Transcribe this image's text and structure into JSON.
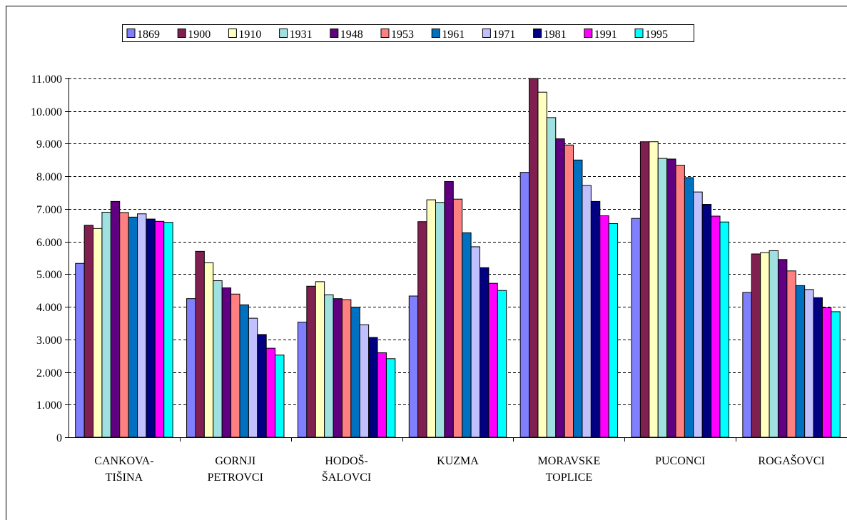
{
  "chart_data": {
    "type": "bar",
    "title": "",
    "xlabel": "",
    "ylabel": "",
    "ylim": [
      0,
      11000
    ],
    "yticks": [
      0,
      1000,
      2000,
      3000,
      4000,
      5000,
      6000,
      7000,
      8000,
      9000,
      10000,
      11000
    ],
    "ytick_labels": [
      "0",
      "1.000",
      "2.000",
      "3.000",
      "4.000",
      "5.000",
      "6.000",
      "7.000",
      "8.000",
      "9.000",
      "10.000",
      "11.000"
    ],
    "grid": "horizontal dashed",
    "legend_position": "top",
    "categories": [
      [
        "CANKOVA-",
        "TIŠINA"
      ],
      [
        "GORNJI",
        "PETROVCI"
      ],
      [
        "HODOŠ-",
        "ŠALOVCI"
      ],
      [
        "KUZMA"
      ],
      [
        "MORAVSKE",
        "TOPLICE"
      ],
      [
        "PUCONCI"
      ],
      [
        "ROGAŠOVCI"
      ]
    ],
    "series": [
      {
        "name": "1869",
        "color": "#8080ff",
        "values": [
          5330,
          4250,
          3530,
          4330,
          8120,
          6710,
          4440
        ]
      },
      {
        "name": "1900",
        "color": "#802050",
        "values": [
          6500,
          5700,
          4630,
          6610,
          11000,
          9060,
          5620
        ]
      },
      {
        "name": "1910",
        "color": "#ffffc0",
        "values": [
          6400,
          5350,
          4770,
          7280,
          10580,
          9060,
          5660
        ]
      },
      {
        "name": "1931",
        "color": "#a0e0e0",
        "values": [
          6900,
          4800,
          4370,
          7200,
          9800,
          8550,
          5720
        ]
      },
      {
        "name": "1948",
        "color": "#600080",
        "values": [
          7230,
          4580,
          4250,
          7840,
          9150,
          8530,
          5450
        ]
      },
      {
        "name": "1953",
        "color": "#ff8080",
        "values": [
          6890,
          4390,
          4220,
          7300,
          8960,
          8340,
          5100
        ]
      },
      {
        "name": "1961",
        "color": "#0070c0",
        "values": [
          6750,
          4060,
          3990,
          6270,
          8500,
          7960,
          4650
        ]
      },
      {
        "name": "1971",
        "color": "#c0c0ff",
        "values": [
          6850,
          3650,
          3450,
          5840,
          7720,
          7520,
          4530
        ]
      },
      {
        "name": "1981",
        "color": "#000080",
        "values": [
          6690,
          3150,
          3060,
          5200,
          7230,
          7140,
          4280
        ]
      },
      {
        "name": "1991",
        "color": "#ff00ff",
        "values": [
          6620,
          2730,
          2590,
          4720,
          6790,
          6780,
          3970
        ]
      },
      {
        "name": "1995",
        "color": "#00ffff",
        "values": [
          6590,
          2520,
          2410,
          4500,
          6550,
          6600,
          3850
        ]
      }
    ]
  }
}
